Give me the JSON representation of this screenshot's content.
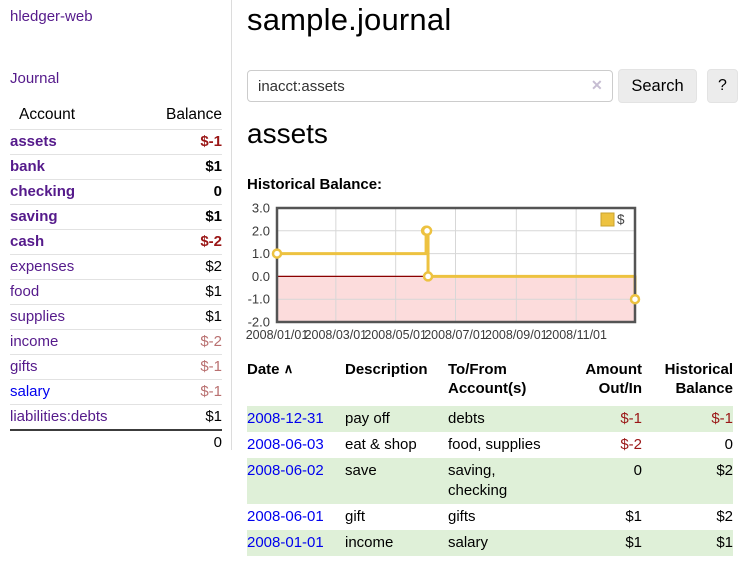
{
  "app": {
    "brand": "hledger-web"
  },
  "colors": {
    "link_purple": "#551a8b",
    "link_blue": "#0000ee",
    "negative_strong": "#9a1616",
    "negative_soft": "#b97070",
    "row_green": "#dff0d8",
    "chart_line": "#edc240",
    "chart_negative_fill": "#fcdcdc",
    "chart_zero_line": "#8b0000",
    "chart_border": "#545454"
  },
  "sidebar": {
    "journal_label": "Journal",
    "accounts_table": {
      "headers": {
        "account": "Account",
        "balance": "Balance"
      },
      "rows": [
        {
          "name": "assets",
          "level": 1,
          "emph": true,
          "balance": "$-1",
          "tone": "neg"
        },
        {
          "name": "bank",
          "level": 2,
          "emph": true,
          "balance": "$1",
          "tone": "plain"
        },
        {
          "name": "checking",
          "level": 3,
          "emph": true,
          "balance": "0",
          "tone": "plain"
        },
        {
          "name": "saving",
          "level": 3,
          "emph": true,
          "balance": "$1",
          "tone": "plain"
        },
        {
          "name": "cash",
          "level": 2,
          "emph": true,
          "balance": "$-2",
          "tone": "neg"
        },
        {
          "name": "expenses",
          "level": 1,
          "emph": false,
          "balance": "$2",
          "tone": "plain"
        },
        {
          "name": "food",
          "level": 2,
          "emph": false,
          "balance": "$1",
          "tone": "plain"
        },
        {
          "name": "supplies",
          "level": 2,
          "emph": false,
          "balance": "$1",
          "tone": "plain"
        },
        {
          "name": "income",
          "level": 1,
          "emph": false,
          "balance": "$-2",
          "tone": "neg-soft"
        },
        {
          "name": "gifts",
          "level": 2,
          "emph": false,
          "balance": "$-1",
          "tone": "neg-soft"
        },
        {
          "name": "salary",
          "level": 2,
          "emph": false,
          "balance": "$-1",
          "tone": "neg-soft",
          "link_tone": "blue"
        },
        {
          "name": "liabilities:debts",
          "level": 1,
          "emph": false,
          "balance": "$1",
          "tone": "plain"
        }
      ],
      "total": "0"
    }
  },
  "header": {
    "title": "sample.journal"
  },
  "search": {
    "value": "inacct:assets",
    "clear_icon": "✕",
    "search_label": "Search",
    "help_label": "?"
  },
  "account_page": {
    "heading": "assets",
    "chart_label": "Historical Balance:"
  },
  "chart_data": {
    "type": "line",
    "step": true,
    "title": "Historical Balance",
    "series": [
      {
        "name": "$",
        "x": [
          "2008-01-01",
          "2008-06-01",
          "2008-06-02",
          "2008-06-03",
          "2008-12-31"
        ],
        "values": [
          1,
          2,
          2,
          0,
          -1
        ]
      }
    ],
    "x_range": [
      "2008-01-01",
      "2008-12-31"
    ],
    "ylim": [
      -2,
      3
    ],
    "y_ticks": [
      "3.0",
      "2.0",
      "1.0",
      "0.0",
      "-1.0",
      "-2.0"
    ],
    "y_tick_values": [
      3,
      2,
      1,
      0,
      -1,
      -2
    ],
    "x_ticks": [
      {
        "date": "2008-01-01",
        "label": "2008/01/01"
      },
      {
        "date": "2008-03-01",
        "label": "2008/03/01"
      },
      {
        "date": "2008-05-01",
        "label": "2008/05/01"
      },
      {
        "date": "2008-07-01",
        "label": "2008/07/01"
      },
      {
        "date": "2008-09-01",
        "label": "2008/09/01"
      },
      {
        "date": "2008-11-01",
        "label": "2008/11/01"
      }
    ],
    "grid": true,
    "legend_position": "top-right",
    "legend": [
      {
        "label": "$",
        "color": "#edc240"
      }
    ]
  },
  "register_table": {
    "sort_icon": "∧",
    "headers": {
      "date": "Date",
      "description": "Description",
      "tofrom_1": "To/From",
      "tofrom_2": "Account(s)",
      "amount_1": "Amount",
      "amount_2": "Out/In",
      "hist_1": "Historical",
      "hist_2": "Balance"
    },
    "rows": [
      {
        "date": "2008-12-31",
        "description": "pay off",
        "accounts": "debts",
        "amount": "$-1",
        "amount_tone": "neg",
        "balance": "$-1",
        "balance_tone": "neg"
      },
      {
        "date": "2008-06-03",
        "description": "eat & shop",
        "accounts": "food, supplies",
        "amount": "$-2",
        "amount_tone": "neg",
        "balance": "0",
        "balance_tone": "plain"
      },
      {
        "date": "2008-06-02",
        "description": "save",
        "accounts": "saving, checking",
        "amount": "0",
        "amount_tone": "plain",
        "balance": "$2",
        "balance_tone": "plain"
      },
      {
        "date": "2008-06-01",
        "description": "gift",
        "accounts": "gifts",
        "amount": "$1",
        "amount_tone": "plain",
        "balance": "$2",
        "balance_tone": "plain"
      },
      {
        "date": "2008-01-01",
        "description": "income",
        "accounts": "salary",
        "amount": "$1",
        "amount_tone": "plain",
        "balance": "$1",
        "balance_tone": "plain"
      }
    ]
  }
}
